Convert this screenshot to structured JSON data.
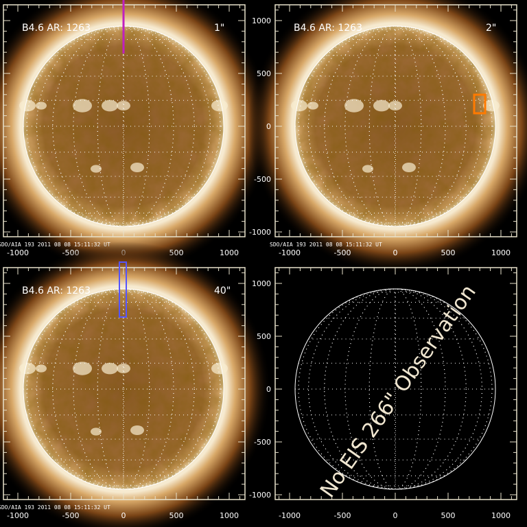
{
  "panels": [
    {
      "title": "B4.6 AR: 1263",
      "slit_label": "1\"",
      "slit_color": "#c020c0",
      "image": true,
      "footer": "SDO/AIA 193   2011 08 08 15:11:32 UT"
    },
    {
      "title": "B4.6 AR: 1263",
      "slit_label": "2\"",
      "slit_color": "#ff7a00",
      "image": true,
      "footer": "SDO/AIA 193   2011 08 08 15:11:32 UT"
    },
    {
      "title": "B4.6 AR: 1263",
      "slit_label": "40\"",
      "slit_color": "#5555ff",
      "image": true,
      "footer": "SDO/AIA 193   2011 08 08 15:11:32 UT"
    },
    {
      "title": "",
      "slit_label": "",
      "image": false,
      "message": "No EIS 266\" Observation",
      "message_color": "#f0e6d0",
      "footer": ""
    }
  ],
  "axes": {
    "x_ticks": [
      "-1000",
      "-500",
      "0",
      "500",
      "1000"
    ],
    "y_ticks": [
      "1000",
      "500",
      "0",
      "-500",
      "-1000"
    ],
    "axis_color": "#e8e2cc"
  },
  "colors": {
    "disk": "#a8743c",
    "limb": "#f5e8cc",
    "corona": "#6b3c12"
  }
}
